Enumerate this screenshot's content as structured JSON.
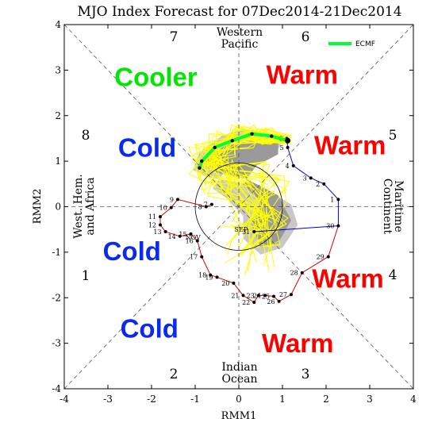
{
  "chart_data": {
    "type": "scatter",
    "title": "MJO Index Forecast for 07Dec2014-21Dec2014",
    "xlabel": "RMM1",
    "ylabel": "RMM2",
    "xlim": [
      -4,
      4
    ],
    "ylim": [
      -4,
      4
    ],
    "x_ticks": [
      "-4",
      "-3",
      "-2",
      "-1",
      "0",
      "1",
      "2",
      "3",
      "4"
    ],
    "y_ticks": [
      "-4",
      "-3",
      "-2",
      "-1",
      "0",
      "1",
      "2",
      "3",
      "4"
    ],
    "phases": [
      "1",
      "2",
      "3",
      "4",
      "5",
      "6",
      "7",
      "8"
    ],
    "regions": {
      "western_pacific": [
        "Western",
        "Pacific"
      ],
      "maritime_continent": [
        "Maritime",
        "Continent"
      ],
      "indian_ocean": [
        "Indian",
        "Ocean"
      ],
      "west_hem_africa": [
        "West. Hem.",
        "and Africa"
      ]
    },
    "annotations": [
      {
        "text": "Cooler",
        "color": "#00e600",
        "x": -1.9,
        "y": 2.65
      },
      {
        "text": "Warm",
        "color": "#ff0000",
        "x": 1.45,
        "y": 2.7
      },
      {
        "text": "Cold",
        "color": "#0a2aee",
        "x": -2.1,
        "y": 1.1
      },
      {
        "text": "Warm",
        "color": "#ff0000",
        "x": 2.55,
        "y": 1.15
      },
      {
        "text": "Cold",
        "color": "#0a2aee",
        "x": -2.45,
        "y": -1.18
      },
      {
        "text": "Warm",
        "color": "#ff0000",
        "x": 2.5,
        "y": -1.78
      },
      {
        "text": "Cold",
        "color": "#0a2aee",
        "x": -2.05,
        "y": -2.88
      },
      {
        "text": "Warm",
        "color": "#ff0000",
        "x": 1.35,
        "y": -3.2
      }
    ],
    "legend": {
      "label": "ECMF",
      "color": "#00ff33",
      "position": "top-right"
    },
    "grid": false,
    "observed_track": {
      "colors": [
        "#0000cc",
        "#cc0000"
      ],
      "points": [
        {
          "day": "1",
          "x": 2.28,
          "y": 0.16
        },
        {
          "day": "2",
          "x": 1.95,
          "y": 0.5
        },
        {
          "day": "3",
          "x": 1.65,
          "y": 0.63
        },
        {
          "day": "4",
          "x": 1.25,
          "y": 0.9
        },
        {
          "day": "5",
          "x": 1.12,
          "y": 1.3
        },
        {
          "day": "6",
          "x": 1.1,
          "y": 1.5
        },
        {
          "day": "7",
          "x": -0.62,
          "y": 0.05
        },
        {
          "day": "8",
          "x": -0.75,
          "y": 0.0
        },
        {
          "day": "9",
          "x": -1.4,
          "y": 0.16
        },
        {
          "day": "10",
          "x": -1.55,
          "y": -0.02
        },
        {
          "day": "11",
          "x": -1.8,
          "y": -0.22
        },
        {
          "day": "12",
          "x": -1.8,
          "y": -0.4
        },
        {
          "day": "13",
          "x": -1.68,
          "y": -0.55
        },
        {
          "day": "14",
          "x": -1.35,
          "y": -0.65
        },
        {
          "day": "15",
          "x": -1.1,
          "y": -0.6
        },
        {
          "day": "16",
          "x": -0.95,
          "y": -0.75
        },
        {
          "day": "17",
          "x": -0.85,
          "y": -1.1
        },
        {
          "day": "18",
          "x": -0.65,
          "y": -1.5
        },
        {
          "day": "19",
          "x": -0.5,
          "y": -1.55
        },
        {
          "day": "20",
          "x": -0.12,
          "y": -1.68
        },
        {
          "day": "21",
          "x": 0.1,
          "y": -1.95
        },
        {
          "day": "22",
          "x": 0.35,
          "y": -2.1
        },
        {
          "day": "23",
          "x": 0.45,
          "y": -1.95
        },
        {
          "day": "24",
          "x": 0.6,
          "y": -1.95
        },
        {
          "day": "25",
          "x": 0.8,
          "y": -1.97
        },
        {
          "day": "26",
          "x": 0.92,
          "y": -2.08
        },
        {
          "day": "27",
          "x": 1.2,
          "y": -1.93
        },
        {
          "day": "28",
          "x": 1.45,
          "y": -1.45
        },
        {
          "day": "29",
          "x": 2.05,
          "y": -1.1
        },
        {
          "day": "30",
          "x": 2.28,
          "y": -0.42
        },
        {
          "day": "31",
          "x": 0.35,
          "y": -0.55
        }
      ]
    },
    "month_labels": [
      {
        "text": "SEP",
        "x": 0.05,
        "y": -0.55
      },
      {
        "text": "NOV",
        "x": -1.05,
        "y": -0.72
      }
    ],
    "forecast_ensemble_mean": {
      "name": "ECMF",
      "color": "#00ff33",
      "points": [
        [
          1.12,
          1.45
        ],
        [
          0.75,
          1.55
        ],
        [
          0.3,
          1.6
        ],
        [
          -0.15,
          1.45
        ],
        [
          -0.55,
          1.3
        ],
        [
          -0.85,
          1.0
        ],
        [
          -0.9,
          0.85
        ]
      ]
    }
  }
}
